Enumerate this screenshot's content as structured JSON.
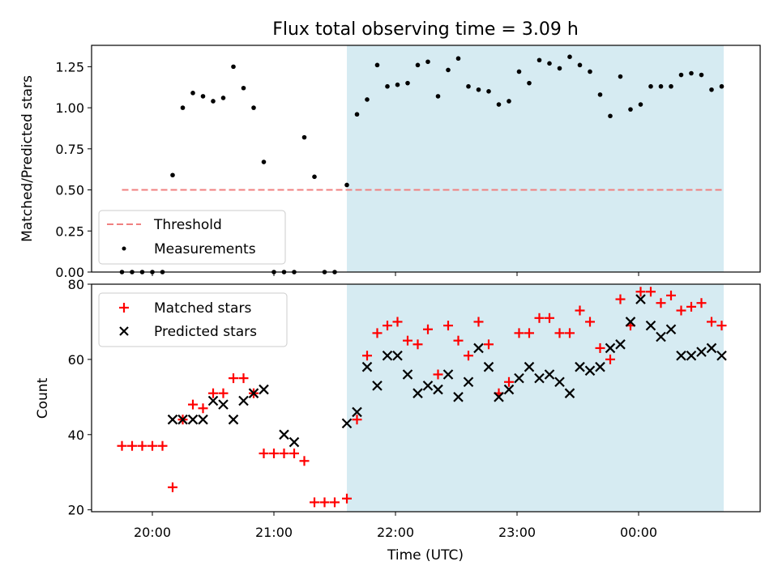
{
  "chart_data": [
    {
      "type": "scatter",
      "title": "Flux total observing time = 3.09 h",
      "ylabel": "Matched/Predicted stars",
      "ylim": [
        0,
        1.38
      ],
      "xlim": [
        "19:30",
        "01:00"
      ],
      "yticks": [
        "0.00",
        "0.25",
        "0.50",
        "0.75",
        "1.00",
        "1.25"
      ],
      "grid": false,
      "legend_position": "lower-left",
      "shaded_region": {
        "x_start": "21:36",
        "x_end": "00:42",
        "color": "#add8e6"
      },
      "threshold": {
        "name": "Threshold",
        "y": 0.5,
        "x_start": "19:45",
        "x_end": "00:42",
        "color": "#f08080",
        "style": "dashed"
      },
      "series": [
        {
          "name": "Measurements",
          "marker": "dot",
          "color": "#000000",
          "x": [
            "19:45",
            "19:50",
            "19:55",
            "20:00",
            "20:05",
            "20:10",
            "20:15",
            "20:20",
            "20:25",
            "20:30",
            "20:35",
            "20:40",
            "20:45",
            "20:50",
            "20:55",
            "21:00",
            "21:05",
            "21:10",
            "21:15",
            "21:20",
            "21:25",
            "21:30",
            "21:36",
            "21:41",
            "21:46",
            "21:51",
            "21:56",
            "22:01",
            "22:06",
            "22:11",
            "22:16",
            "22:21",
            "22:26",
            "22:31",
            "22:36",
            "22:41",
            "22:46",
            "22:51",
            "22:56",
            "23:01",
            "23:06",
            "23:11",
            "23:16",
            "23:21",
            "23:26",
            "23:31",
            "23:36",
            "23:41",
            "23:46",
            "23:51",
            "23:56",
            "00:01",
            "00:06",
            "00:11",
            "00:16",
            "00:21",
            "00:26",
            "00:31",
            "00:36",
            "00:41"
          ],
          "y": [
            0,
            0,
            0,
            0,
            0,
            0.59,
            1.0,
            1.09,
            1.07,
            1.04,
            1.06,
            1.25,
            1.12,
            1.0,
            0.67,
            0,
            0,
            0,
            0.82,
            0.58,
            0,
            0,
            0.53,
            0.96,
            1.05,
            1.26,
            1.13,
            1.14,
            1.15,
            1.26,
            1.28,
            1.07,
            1.23,
            1.3,
            1.13,
            1.11,
            1.1,
            1.02,
            1.04,
            1.22,
            1.15,
            1.29,
            1.27,
            1.24,
            1.31,
            1.26,
            1.22,
            1.08,
            0.95,
            1.19,
            0.99,
            1.02,
            1.13,
            1.13,
            1.13,
            1.2,
            1.21,
            1.2,
            1.11,
            1.13
          ]
        }
      ]
    },
    {
      "type": "scatter",
      "xlabel": "Time (UTC)",
      "ylabel": "Count",
      "ylim": [
        19.5,
        80
      ],
      "xlim": [
        "19:30",
        "01:00"
      ],
      "xticks": [
        "20:00",
        "21:00",
        "22:00",
        "23:00",
        "00:00"
      ],
      "yticks": [
        "20",
        "40",
        "60",
        "80"
      ],
      "grid": false,
      "legend_position": "upper-left",
      "shaded_region": {
        "x_start": "21:36",
        "x_end": "00:42",
        "color": "#add8e6"
      },
      "series": [
        {
          "name": "Matched stars",
          "marker": "plus",
          "color": "#ff0000",
          "x": [
            "19:45",
            "19:50",
            "19:55",
            "20:00",
            "20:05",
            "20:10",
            "20:15",
            "20:20",
            "20:25",
            "20:30",
            "20:35",
            "20:40",
            "20:45",
            "20:50",
            "20:55",
            "21:00",
            "21:05",
            "21:10",
            "21:15",
            "21:20",
            "21:25",
            "21:30",
            "21:36",
            "21:41",
            "21:46",
            "21:51",
            "21:56",
            "22:01",
            "22:06",
            "22:11",
            "22:16",
            "22:21",
            "22:26",
            "22:31",
            "22:36",
            "22:41",
            "22:46",
            "22:51",
            "22:56",
            "23:01",
            "23:06",
            "23:11",
            "23:16",
            "23:21",
            "23:26",
            "23:31",
            "23:36",
            "23:41",
            "23:46",
            "23:51",
            "23:56",
            "00:01",
            "00:06",
            "00:11",
            "00:16",
            "00:21",
            "00:26",
            "00:31",
            "00:36",
            "00:41"
          ],
          "y": [
            37,
            37,
            37,
            37,
            37,
            26,
            44,
            48,
            47,
            51,
            51,
            55,
            55,
            51,
            35,
            35,
            35,
            35,
            33,
            22,
            22,
            22,
            23,
            44,
            61,
            67,
            69,
            70,
            65,
            64,
            68,
            56,
            69,
            65,
            61,
            70,
            64,
            51,
            54,
            67,
            67,
            71,
            71,
            67,
            67,
            73,
            70,
            63,
            60,
            76,
            69,
            78,
            78,
            75,
            77,
            73,
            74,
            75,
            70,
            69
          ]
        },
        {
          "name": "Predicted stars",
          "marker": "x",
          "color": "#000000",
          "x": [
            "20:10",
            "20:15",
            "20:20",
            "20:25",
            "20:30",
            "20:35",
            "20:40",
            "20:45",
            "20:50",
            "20:55",
            "21:05",
            "21:10",
            "21:36",
            "21:41",
            "21:46",
            "21:51",
            "21:56",
            "22:01",
            "22:06",
            "22:11",
            "22:16",
            "22:21",
            "22:26",
            "22:31",
            "22:36",
            "22:41",
            "22:46",
            "22:51",
            "22:56",
            "23:01",
            "23:06",
            "23:11",
            "23:16",
            "23:21",
            "23:26",
            "23:31",
            "23:36",
            "23:41",
            "23:46",
            "23:51",
            "23:56",
            "00:01",
            "00:06",
            "00:11",
            "00:16",
            "00:21",
            "00:26",
            "00:31",
            "00:36",
            "00:41"
          ],
          "y": [
            44,
            44,
            44,
            44,
            49,
            48,
            44,
            49,
            51,
            52,
            40,
            38,
            43,
            46,
            58,
            53,
            61,
            61,
            56,
            51,
            53,
            52,
            56,
            50,
            54,
            63,
            58,
            50,
            52,
            55,
            58,
            55,
            56,
            54,
            51,
            58,
            57,
            58,
            63,
            64,
            70,
            76,
            69,
            66,
            68,
            61,
            61,
            62,
            63,
            61
          ]
        }
      ]
    }
  ]
}
